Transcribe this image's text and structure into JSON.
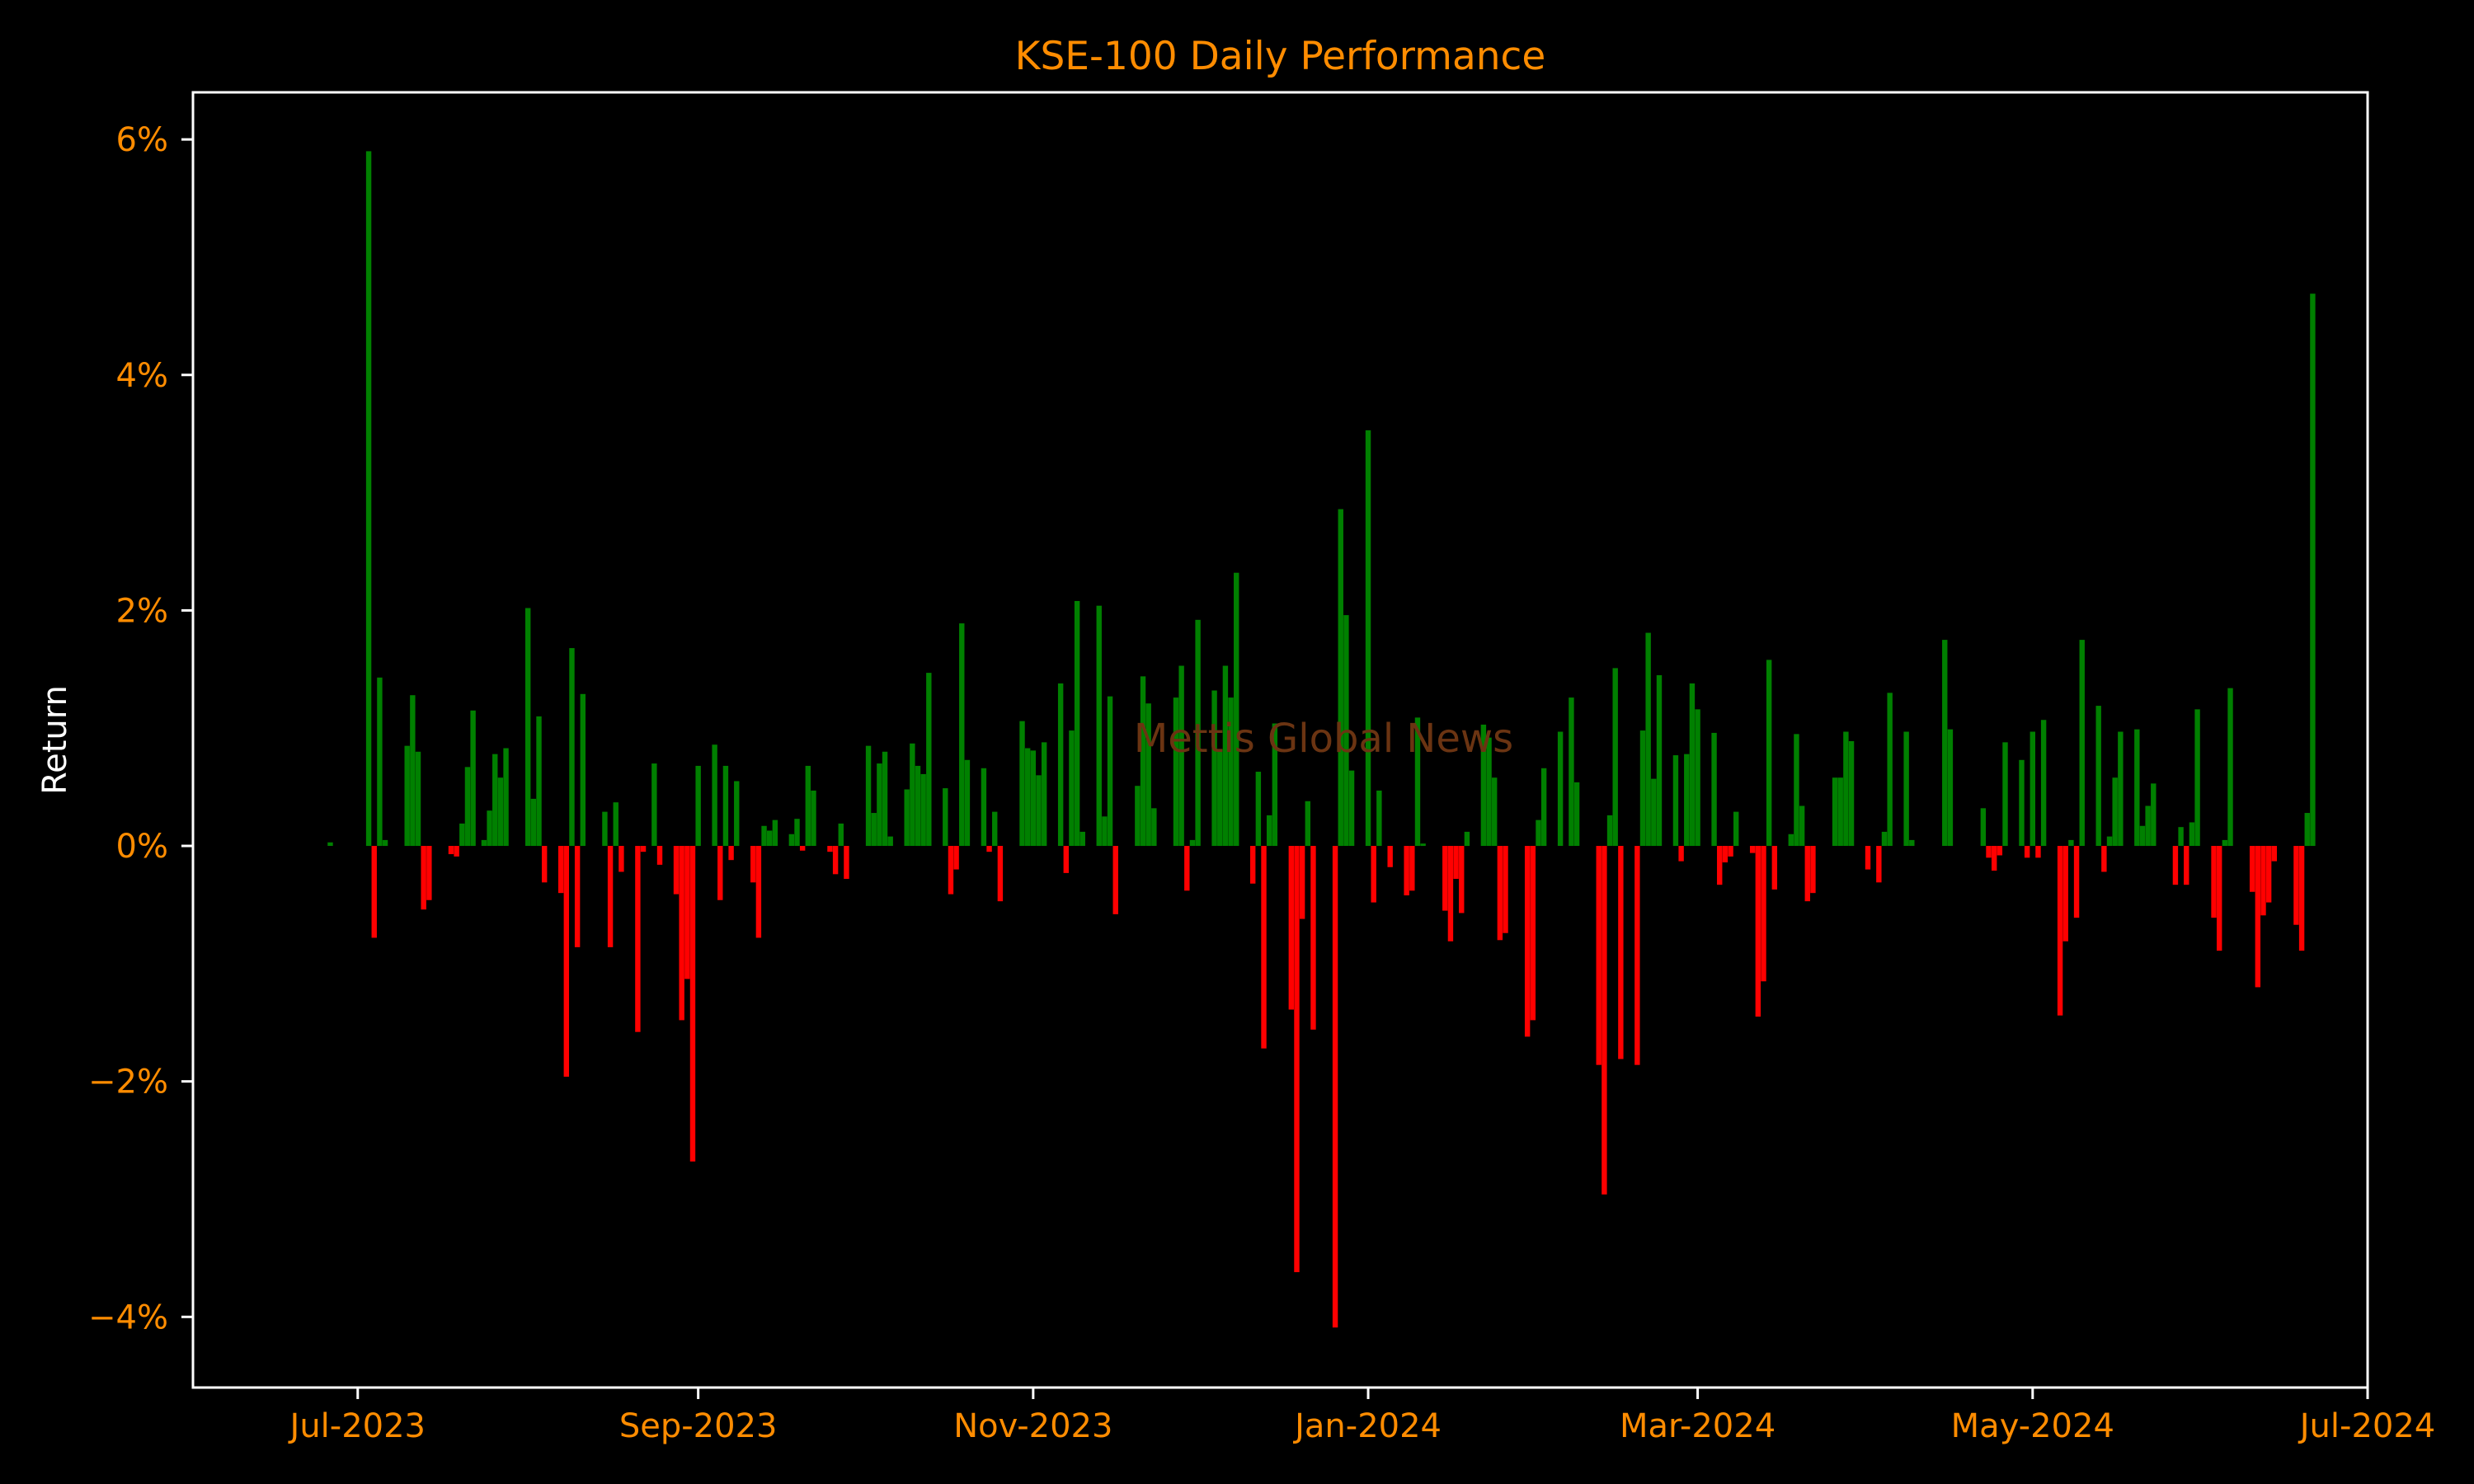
{
  "colors": {
    "background": "#000000",
    "axes_frame": "#ffffff",
    "tick_text": "#ff8c00",
    "title_text": "#ff8c00",
    "ylabel_text": "#ffffff",
    "positive": "#008000",
    "negative": "#ff0000",
    "watermark": "#6b3412"
  },
  "watermark": "Mettis Global News",
  "chart_data": {
    "type": "bar",
    "title": "KSE-100 Daily Performance",
    "xlabel": "",
    "ylabel": "Return",
    "y_unit": "%",
    "xlim": [
      "2023-06-01",
      "2024-07-01"
    ],
    "ylim": [
      -4.6,
      6.4
    ],
    "yticks": [
      -4,
      -2,
      0,
      2,
      4,
      6
    ],
    "ytick_labels": [
      "−4%",
      "−2%",
      "0%",
      "2%",
      "4%",
      "6%"
    ],
    "xticks": [
      "2023-07-01",
      "2023-09-01",
      "2023-11-01",
      "2024-01-01",
      "2024-03-01",
      "2024-05-01",
      "2024-07-01"
    ],
    "xtick_labels": [
      "Jul-2023",
      "Sep-2023",
      "Nov-2023",
      "Jan-2024",
      "Mar-2024",
      "May-2024",
      "Jul-2024"
    ],
    "grid": false,
    "legend": "none",
    "positive_color": "#008000",
    "negative_color": "#ff0000",
    "series": [
      {
        "data": [
          [
            "2023-06-26",
            0.03
          ],
          [
            "2023-07-03",
            5.9
          ],
          [
            "2023-07-04",
            -0.78
          ],
          [
            "2023-07-05",
            1.43
          ],
          [
            "2023-07-06",
            0.05
          ],
          [
            "2023-07-10",
            0.85
          ],
          [
            "2023-07-11",
            1.28
          ],
          [
            "2023-07-12",
            0.8
          ],
          [
            "2023-07-13",
            -0.54
          ],
          [
            "2023-07-14",
            -0.46
          ],
          [
            "2023-07-18",
            -0.07
          ],
          [
            "2023-07-19",
            -0.09
          ],
          [
            "2023-07-20",
            0.19
          ],
          [
            "2023-07-21",
            0.67
          ],
          [
            "2023-07-22",
            1.15
          ],
          [
            "2023-07-24",
            0.05
          ],
          [
            "2023-07-25",
            0.3
          ],
          [
            "2023-07-26",
            0.78
          ],
          [
            "2023-07-27",
            0.58
          ],
          [
            "2023-07-28",
            0.83
          ],
          [
            "2023-08-01",
            2.02
          ],
          [
            "2023-08-02",
            0.4
          ],
          [
            "2023-08-03",
            1.1
          ],
          [
            "2023-08-04",
            -0.31
          ],
          [
            "2023-08-07",
            -0.4
          ],
          [
            "2023-08-08",
            -1.96
          ],
          [
            "2023-08-09",
            1.68
          ],
          [
            "2023-08-10",
            -0.86
          ],
          [
            "2023-08-11",
            1.29
          ],
          [
            "2023-08-15",
            0.29
          ],
          [
            "2023-08-16",
            -0.86
          ],
          [
            "2023-08-17",
            0.37
          ],
          [
            "2023-08-18",
            -0.22
          ],
          [
            "2023-08-21",
            -1.58
          ],
          [
            "2023-08-22",
            -0.05
          ],
          [
            "2023-08-24",
            0.7
          ],
          [
            "2023-08-25",
            -0.16
          ],
          [
            "2023-08-28",
            -0.41
          ],
          [
            "2023-08-29",
            -1.48
          ],
          [
            "2023-08-30",
            -1.13
          ],
          [
            "2023-08-31",
            -2.68
          ],
          [
            "2023-09-01",
            0.68
          ],
          [
            "2023-09-04",
            0.86
          ],
          [
            "2023-09-05",
            -0.46
          ],
          [
            "2023-09-06",
            0.68
          ],
          [
            "2023-09-07",
            -0.12
          ],
          [
            "2023-09-08",
            0.55
          ],
          [
            "2023-09-11",
            -0.31
          ],
          [
            "2023-09-12",
            -0.78
          ],
          [
            "2023-09-13",
            0.17
          ],
          [
            "2023-09-14",
            0.13
          ],
          [
            "2023-09-15",
            0.22
          ],
          [
            "2023-09-18",
            0.1
          ],
          [
            "2023-09-19",
            0.23
          ],
          [
            "2023-09-20",
            -0.04
          ],
          [
            "2023-09-21",
            0.68
          ],
          [
            "2023-09-22",
            0.47
          ],
          [
            "2023-09-25",
            -0.05
          ],
          [
            "2023-09-26",
            -0.24
          ],
          [
            "2023-09-27",
            0.19
          ],
          [
            "2023-09-28",
            -0.28
          ],
          [
            "2023-10-02",
            0.85
          ],
          [
            "2023-10-03",
            0.28
          ],
          [
            "2023-10-04",
            0.7
          ],
          [
            "2023-10-05",
            0.8
          ],
          [
            "2023-10-06",
            0.08
          ],
          [
            "2023-10-09",
            0.48
          ],
          [
            "2023-10-10",
            0.87
          ],
          [
            "2023-10-11",
            0.68
          ],
          [
            "2023-10-12",
            0.61
          ],
          [
            "2023-10-13",
            1.47
          ],
          [
            "2023-10-16",
            0.49
          ],
          [
            "2023-10-17",
            -0.41
          ],
          [
            "2023-10-18",
            -0.2
          ],
          [
            "2023-10-19",
            1.89
          ],
          [
            "2023-10-20",
            0.73
          ],
          [
            "2023-10-23",
            0.66
          ],
          [
            "2023-10-24",
            -0.05
          ],
          [
            "2023-10-25",
            0.29
          ],
          [
            "2023-10-26",
            -0.47
          ],
          [
            "2023-10-30",
            1.06
          ],
          [
            "2023-10-31",
            0.83
          ],
          [
            "2023-11-01",
            0.81
          ],
          [
            "2023-11-02",
            0.6
          ],
          [
            "2023-11-03",
            0.88
          ],
          [
            "2023-11-06",
            1.38
          ],
          [
            "2023-11-07",
            -0.23
          ],
          [
            "2023-11-08",
            0.98
          ],
          [
            "2023-11-09",
            2.08
          ],
          [
            "2023-11-10",
            0.12
          ],
          [
            "2023-11-13",
            2.04
          ],
          [
            "2023-11-14",
            0.25
          ],
          [
            "2023-11-15",
            1.27
          ],
          [
            "2023-11-16",
            -0.58
          ],
          [
            "2023-11-20",
            0.51
          ],
          [
            "2023-11-21",
            1.44
          ],
          [
            "2023-11-22",
            1.21
          ],
          [
            "2023-11-23",
            0.32
          ],
          [
            "2023-11-27",
            1.26
          ],
          [
            "2023-11-28",
            1.53
          ],
          [
            "2023-11-29",
            -0.38
          ],
          [
            "2023-11-30",
            0.05
          ],
          [
            "2023-12-01",
            1.92
          ],
          [
            "2023-12-04",
            1.32
          ],
          [
            "2023-12-05",
            0.82
          ],
          [
            "2023-12-06",
            1.53
          ],
          [
            "2023-12-07",
            1.26
          ],
          [
            "2023-12-08",
            2.32
          ],
          [
            "2023-12-11",
            -0.32
          ],
          [
            "2023-12-12",
            0.63
          ],
          [
            "2023-12-13",
            -1.72
          ],
          [
            "2023-12-14",
            0.26
          ],
          [
            "2023-12-15",
            1.04
          ],
          [
            "2023-12-18",
            -1.39
          ],
          [
            "2023-12-19",
            -3.62
          ],
          [
            "2023-12-20",
            -0.62
          ],
          [
            "2023-12-21",
            0.38
          ],
          [
            "2023-12-22",
            -1.56
          ],
          [
            "2023-12-26",
            -4.09
          ],
          [
            "2023-12-27",
            2.86
          ],
          [
            "2023-12-28",
            1.96
          ],
          [
            "2023-12-29",
            0.64
          ],
          [
            "2024-01-01",
            3.53
          ],
          [
            "2024-01-02",
            -0.48
          ],
          [
            "2024-01-03",
            0.47
          ],
          [
            "2024-01-05",
            -0.18
          ],
          [
            "2024-01-08",
            -0.42
          ],
          [
            "2024-01-09",
            -0.38
          ],
          [
            "2024-01-10",
            1.09
          ],
          [
            "2024-01-11",
            0.02
          ],
          [
            "2024-01-15",
            -0.55
          ],
          [
            "2024-01-16",
            -0.81
          ],
          [
            "2024-01-17",
            -0.28
          ],
          [
            "2024-01-18",
            -0.57
          ],
          [
            "2024-01-19",
            0.12
          ],
          [
            "2024-01-22",
            1.03
          ],
          [
            "2024-01-23",
            0.92
          ],
          [
            "2024-01-24",
            0.58
          ],
          [
            "2024-01-25",
            -0.8
          ],
          [
            "2024-01-26",
            -0.74
          ],
          [
            "2024-01-30",
            -1.62
          ],
          [
            "2024-01-31",
            -1.48
          ],
          [
            "2024-02-01",
            0.22
          ],
          [
            "2024-02-02",
            0.66
          ],
          [
            "2024-02-05",
            0.97
          ],
          [
            "2024-02-07",
            1.26
          ],
          [
            "2024-02-08",
            0.54
          ],
          [
            "2024-02-12",
            -1.86
          ],
          [
            "2024-02-13",
            -2.96
          ],
          [
            "2024-02-14",
            0.26
          ],
          [
            "2024-02-15",
            1.51
          ],
          [
            "2024-02-16",
            -1.81
          ],
          [
            "2024-02-19",
            -1.86
          ],
          [
            "2024-02-20",
            0.98
          ],
          [
            "2024-02-21",
            1.81
          ],
          [
            "2024-02-22",
            0.57
          ],
          [
            "2024-02-23",
            1.45
          ],
          [
            "2024-02-26",
            0.77
          ],
          [
            "2024-02-27",
            -0.13
          ],
          [
            "2024-02-28",
            0.78
          ],
          [
            "2024-02-29",
            1.38
          ],
          [
            "2024-03-01",
            1.16
          ],
          [
            "2024-03-04",
            0.96
          ],
          [
            "2024-03-05",
            -0.33
          ],
          [
            "2024-03-06",
            -0.14
          ],
          [
            "2024-03-07",
            -0.09
          ],
          [
            "2024-03-08",
            0.29
          ],
          [
            "2024-03-11",
            -0.06
          ],
          [
            "2024-03-12",
            -1.45
          ],
          [
            "2024-03-13",
            -1.15
          ],
          [
            "2024-03-14",
            1.58
          ],
          [
            "2024-03-15",
            -0.37
          ],
          [
            "2024-03-18",
            0.1
          ],
          [
            "2024-03-19",
            0.95
          ],
          [
            "2024-03-20",
            0.34
          ],
          [
            "2024-03-21",
            -0.47
          ],
          [
            "2024-03-22",
            -0.4
          ],
          [
            "2024-03-26",
            0.58
          ],
          [
            "2024-03-27",
            0.58
          ],
          [
            "2024-03-28",
            0.97
          ],
          [
            "2024-03-29",
            0.89
          ],
          [
            "2024-04-01",
            -0.2
          ],
          [
            "2024-04-03",
            -0.31
          ],
          [
            "2024-04-04",
            0.12
          ],
          [
            "2024-04-05",
            1.3
          ],
          [
            "2024-04-08",
            0.97
          ],
          [
            "2024-04-09",
            0.05
          ],
          [
            "2024-04-15",
            1.75
          ],
          [
            "2024-04-16",
            0.99
          ],
          [
            "2024-04-22",
            0.32
          ],
          [
            "2024-04-23",
            -0.1
          ],
          [
            "2024-04-24",
            -0.21
          ],
          [
            "2024-04-25",
            -0.08
          ],
          [
            "2024-04-26",
            0.88
          ],
          [
            "2024-04-29",
            0.73
          ],
          [
            "2024-04-30",
            -0.1
          ],
          [
            "2024-05-01",
            0.97
          ],
          [
            "2024-05-02",
            -0.1
          ],
          [
            "2024-05-03",
            1.07
          ],
          [
            "2024-05-06",
            -1.44
          ],
          [
            "2024-05-07",
            -0.81
          ],
          [
            "2024-05-08",
            0.05
          ],
          [
            "2024-05-09",
            -0.61
          ],
          [
            "2024-05-10",
            1.75
          ],
          [
            "2024-05-13",
            1.19
          ],
          [
            "2024-05-14",
            -0.22
          ],
          [
            "2024-05-15",
            0.08
          ],
          [
            "2024-05-16",
            0.58
          ],
          [
            "2024-05-17",
            0.97
          ],
          [
            "2024-05-20",
            0.99
          ],
          [
            "2024-05-21",
            0.17
          ],
          [
            "2024-05-22",
            0.34
          ],
          [
            "2024-05-23",
            0.53
          ],
          [
            "2024-05-27",
            -0.33
          ],
          [
            "2024-05-28",
            0.16
          ],
          [
            "2024-05-29",
            -0.33
          ],
          [
            "2024-05-30",
            0.2
          ],
          [
            "2024-05-31",
            1.16
          ],
          [
            "2024-06-03",
            -0.61
          ],
          [
            "2024-06-04",
            -0.89
          ],
          [
            "2024-06-05",
            0.05
          ],
          [
            "2024-06-06",
            1.34
          ],
          [
            "2024-06-10",
            -0.39
          ],
          [
            "2024-06-11",
            -1.2
          ],
          [
            "2024-06-12",
            -0.59
          ],
          [
            "2024-06-13",
            -0.48
          ],
          [
            "2024-06-14",
            -0.13
          ],
          [
            "2024-06-18",
            -0.67
          ],
          [
            "2024-06-19",
            -0.89
          ],
          [
            "2024-06-20",
            0.28
          ],
          [
            "2024-06-21",
            4.69
          ]
        ]
      }
    ]
  }
}
